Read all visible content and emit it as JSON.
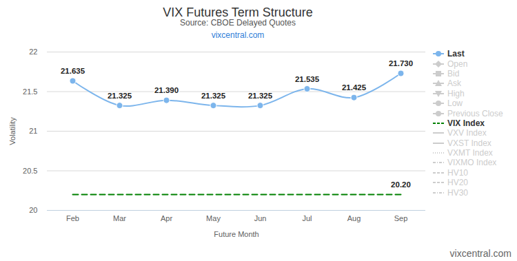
{
  "chart_data": {
    "type": "line",
    "title": "VIX Futures Term Structure",
    "subtitle": "Source: CBOE Delayed Quotes",
    "annotations": [
      "vixcentral.com",
      "vixcentral.com"
    ],
    "xlabel": "Future Month",
    "ylabel": "Volatility",
    "categories": [
      "Feb",
      "Mar",
      "Apr",
      "May",
      "Jun",
      "Jul",
      "Aug",
      "Sep"
    ],
    "series": [
      {
        "name": "Last",
        "color": "#7cb5ec",
        "marker": "circle",
        "line_style": "solid",
        "values": [
          21.635,
          21.325,
          21.39,
          21.325,
          21.325,
          21.535,
          21.425,
          21.73
        ],
        "value_labels": [
          "21.635",
          "21.325",
          "21.390",
          "21.325",
          "21.325",
          "21.535",
          "21.425",
          "21.730"
        ]
      },
      {
        "name": "Open",
        "color": "#cccccc",
        "marker": "diamond",
        "line_style": "solid",
        "values": [
          null,
          null,
          null,
          null,
          null,
          null,
          null,
          null
        ]
      },
      {
        "name": "Bid",
        "color": "#cccccc",
        "marker": "square",
        "line_style": "solid",
        "values": [
          null,
          null,
          null,
          null,
          null,
          null,
          null,
          null
        ]
      },
      {
        "name": "Ask",
        "color": "#cccccc",
        "marker": "triangle",
        "line_style": "solid",
        "values": [
          null,
          null,
          null,
          null,
          null,
          null,
          null,
          null
        ]
      },
      {
        "name": "High",
        "color": "#cccccc",
        "marker": "triangle-down",
        "line_style": "solid",
        "values": [
          null,
          null,
          null,
          null,
          null,
          null,
          null,
          null
        ]
      },
      {
        "name": "Low",
        "color": "#cccccc",
        "marker": "circle",
        "line_style": "solid",
        "values": [
          null,
          null,
          null,
          null,
          null,
          null,
          null,
          null
        ]
      },
      {
        "name": "Previous Close",
        "color": "#cccccc",
        "marker": "circle",
        "line_style": "solid",
        "values": [
          null,
          null,
          null,
          null,
          null,
          null,
          null,
          null
        ]
      },
      {
        "name": "VIX Index",
        "color": "#008000",
        "line_style": "dashed",
        "values": [
          20.2,
          20.2,
          20.2,
          20.2,
          20.2,
          20.2,
          20.2,
          20.2
        ],
        "value_labels": [
          null,
          null,
          null,
          null,
          null,
          null,
          null,
          "20.20"
        ]
      },
      {
        "name": "VXV Index",
        "color": "#cccccc",
        "line_style": "solid",
        "values": [
          null,
          null,
          null,
          null,
          null,
          null,
          null,
          null
        ]
      },
      {
        "name": "VXST Index",
        "color": "#cccccc",
        "line_style": "solid",
        "values": [
          null,
          null,
          null,
          null,
          null,
          null,
          null,
          null
        ]
      },
      {
        "name": "VXMT Index",
        "color": "#cccccc",
        "line_style": "dotted",
        "values": [
          null,
          null,
          null,
          null,
          null,
          null,
          null,
          null
        ]
      },
      {
        "name": "VIXMO Index",
        "color": "#cccccc",
        "line_style": "dashdot",
        "values": [
          null,
          null,
          null,
          null,
          null,
          null,
          null,
          null
        ]
      },
      {
        "name": "HV10",
        "color": "#cccccc",
        "line_style": "dashed",
        "values": [
          null,
          null,
          null,
          null,
          null,
          null,
          null,
          null
        ]
      },
      {
        "name": "HV20",
        "color": "#cccccc",
        "line_style": "dashed",
        "values": [
          null,
          null,
          null,
          null,
          null,
          null,
          null,
          null
        ]
      },
      {
        "name": "HV30",
        "color": "#cccccc",
        "line_style": "dashdot",
        "values": [
          null,
          null,
          null,
          null,
          null,
          null,
          null,
          null
        ]
      }
    ],
    "ylim": [
      20,
      22
    ],
    "yticks": [
      20,
      20.5,
      21,
      21.5,
      22
    ],
    "grid": true,
    "legend": "right",
    "data_labels": true
  }
}
